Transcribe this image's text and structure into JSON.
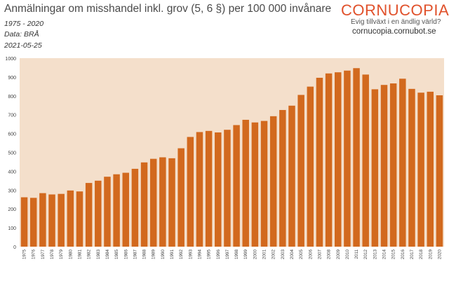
{
  "header": {
    "title": "Anmälningar om misshandel inkl. grov (5, 6 §) per 100 000 invånare",
    "period": "1975 - 2020",
    "source": "Data: BRÅ",
    "date": "2021-05-25"
  },
  "logo": {
    "name": "CORNUCOPIA?",
    "tagline": "Evig tillväxt i en ändlig värld?",
    "url": "cornucopia.cornubot.se",
    "icon": "cornucopia-horn-icon",
    "color": "#e0512b"
  },
  "chart_data": {
    "type": "bar",
    "title": "Anmälningar om misshandel inkl. grov (5, 6 §) per 100 000 invånare",
    "xlabel": "",
    "ylabel": "",
    "ylim": [
      0,
      1000
    ],
    "yticks": [
      0,
      100,
      200,
      300,
      400,
      500,
      600,
      700,
      800,
      900,
      1000
    ],
    "grid": false,
    "bar_color": "#d2691e",
    "plot_background": "#f4dfcb",
    "categories": [
      "1975",
      "1976",
      "1977",
      "1978",
      "1979",
      "1980",
      "1981",
      "1982",
      "1983",
      "1984",
      "1985",
      "1986",
      "1987",
      "1988",
      "1989",
      "1990",
      "1991",
      "1992",
      "1993",
      "1994",
      "1995",
      "1996",
      "1997",
      "1998",
      "1999",
      "2000",
      "2001",
      "2002",
      "2003",
      "2004",
      "2005",
      "2006",
      "2007",
      "2008",
      "2009",
      "2010",
      "2011",
      "2012",
      "2013",
      "2014",
      "2015",
      "2016",
      "2017",
      "2018",
      "2019",
      "2020"
    ],
    "values": [
      262,
      259,
      284,
      277,
      280,
      298,
      293,
      338,
      350,
      371,
      384,
      392,
      413,
      447,
      466,
      474,
      469,
      522,
      582,
      608,
      614,
      606,
      620,
      645,
      673,
      659,
      667,
      692,
      725,
      748,
      805,
      849,
      896,
      919,
      925,
      934,
      947,
      913,
      835,
      858,
      866,
      891,
      837,
      817,
      822,
      803
    ]
  }
}
